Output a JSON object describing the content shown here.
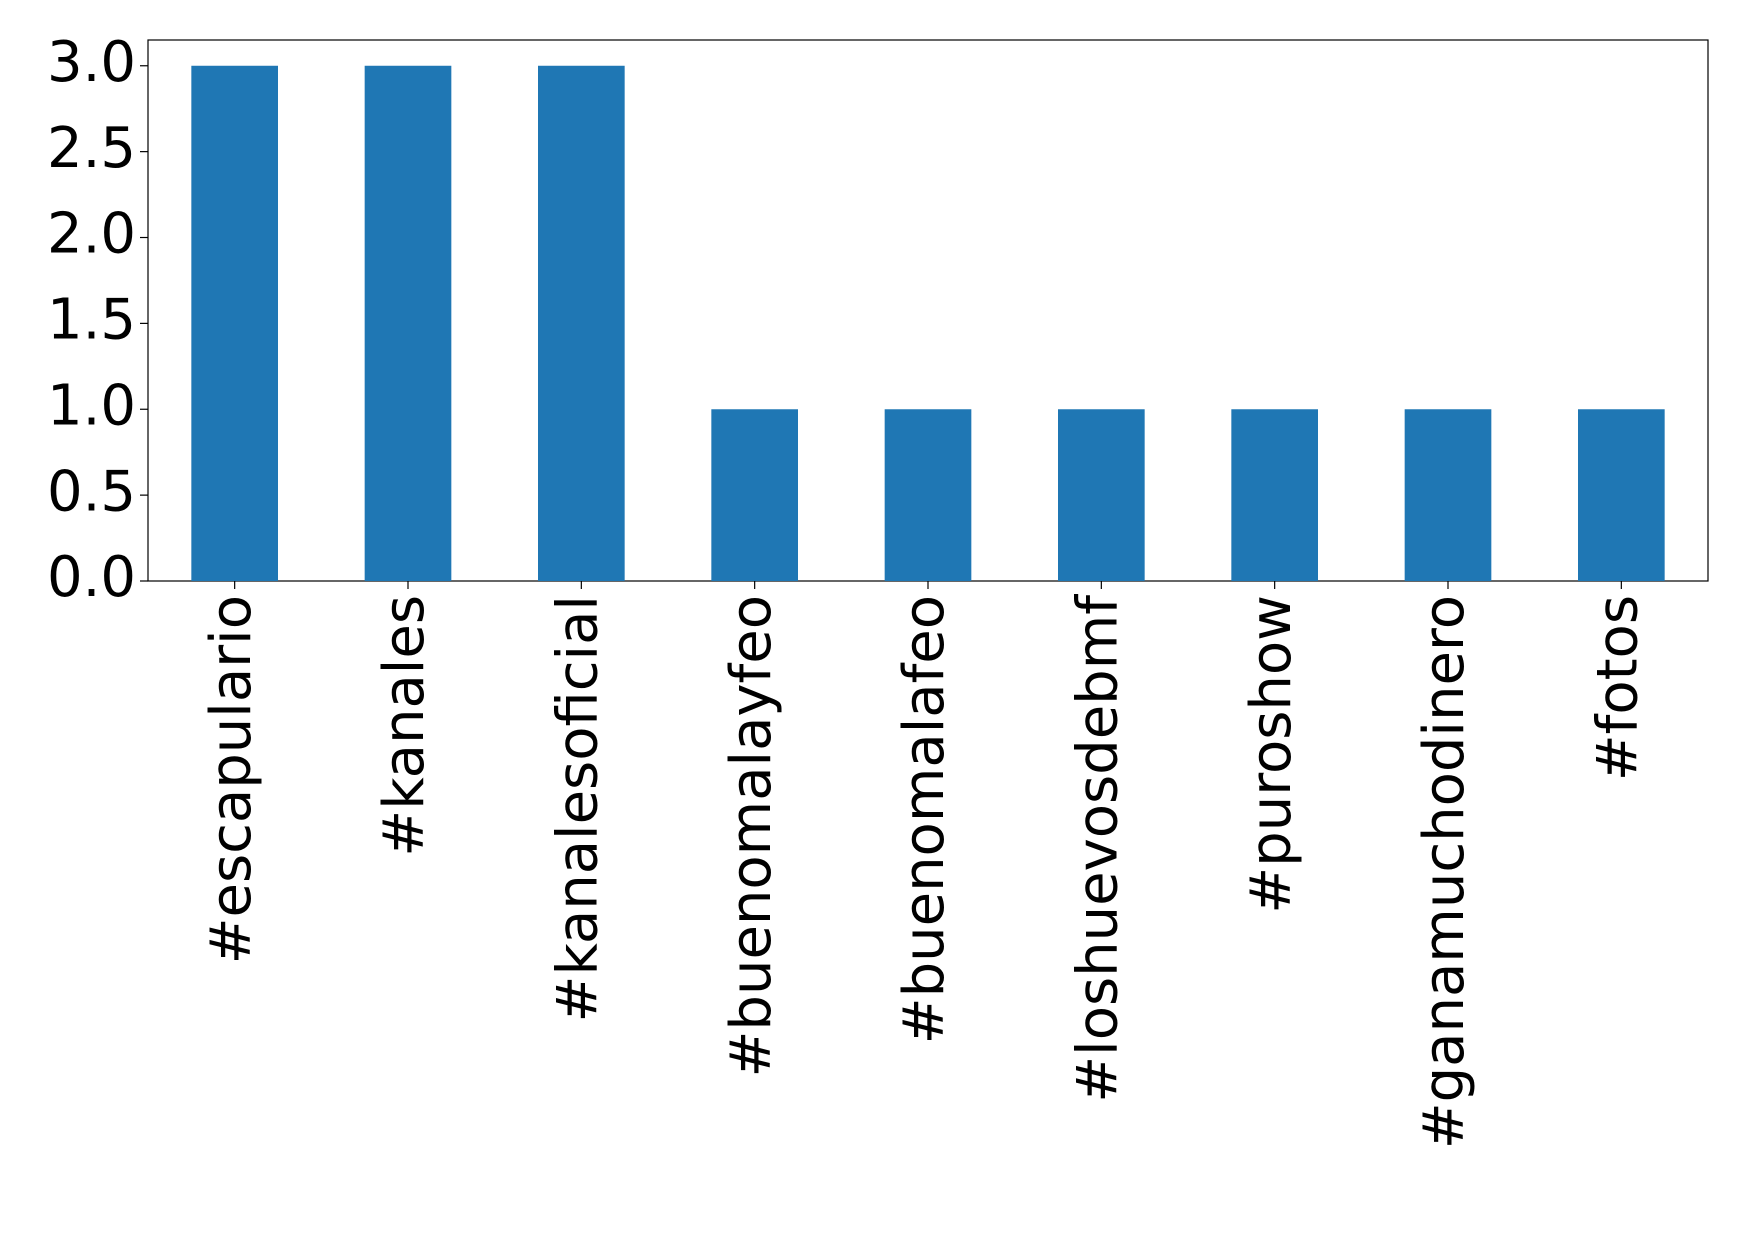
{
  "chart_data": {
    "type": "bar",
    "categories": [
      "#escapulario",
      "#kanales",
      "#kanalesoficial",
      "#buenomalayfeo",
      "#buenomalafeo",
      "#loshuevosdebmf",
      "#puroshow",
      "#ganamuchodinero",
      "#fotos"
    ],
    "values": [
      3,
      3,
      3,
      1,
      1,
      1,
      1,
      1,
      1
    ],
    "color": "#1f77b4",
    "ylim": [
      0,
      3.15
    ],
    "yticks": [
      {
        "value": 0,
        "label": "0.0"
      },
      0.5,
      {
        "value": 1,
        "label": "1.0"
      },
      1.5,
      {
        "value": 2,
        "label": "2.0"
      },
      2.5,
      {
        "value": 3,
        "label": "3.0"
      }
    ],
    "grid": false
  }
}
